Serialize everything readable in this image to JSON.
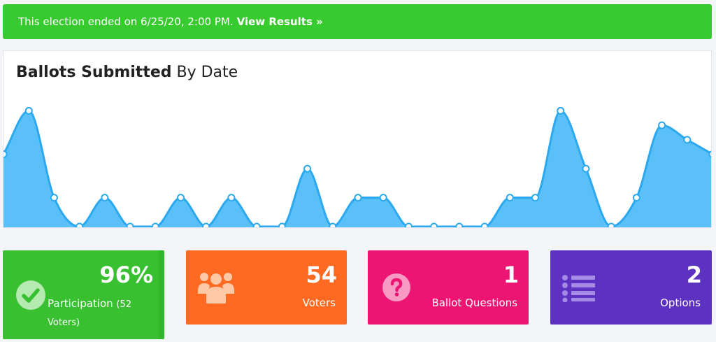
{
  "alert": {
    "message": "This election ended on 6/25/20, 2:00 PM.",
    "link_label": "View Results »"
  },
  "chart": {
    "title_bold": "Ballots Submitted",
    "title_rest": "By Date"
  },
  "chart_data": {
    "type": "area",
    "title": "Ballots Submitted By Date",
    "xlabel": "",
    "ylabel": "",
    "values": [
      5,
      8,
      2,
      0,
      2,
      0,
      0,
      2,
      0,
      2,
      0,
      0,
      4,
      0,
      2,
      2,
      0,
      0,
      0,
      0,
      2,
      2,
      8,
      4,
      0,
      2,
      7,
      6,
      5
    ],
    "ylim": [
      0,
      8.6
    ],
    "color": "#5bc0f8",
    "line_color": "#2ba8ee"
  },
  "stats": {
    "participation": {
      "value": "96%",
      "label": "Participation",
      "sub": "(52 Voters)"
    },
    "voters": {
      "value": "54",
      "label": "Voters"
    },
    "questions": {
      "value": "1",
      "label": "Ballot Questions"
    },
    "options": {
      "value": "2",
      "label": "Options"
    }
  },
  "colors": {
    "success": "#38cb2f",
    "orange": "#ff6a22",
    "pink": "#ec1574",
    "purple": "#5d32c0"
  },
  "icons": {
    "participation": "check-circle-icon",
    "voters": "users-icon",
    "questions": "question-circle-icon",
    "options": "list-icon"
  }
}
